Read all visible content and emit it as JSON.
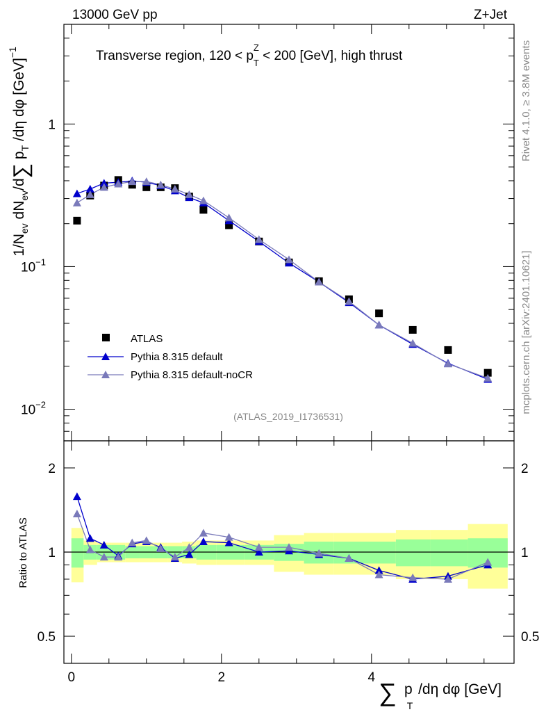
{
  "header": {
    "energy_label": "13000 GeV pp",
    "process_label": "Z+Jet",
    "title_prefix": "Transverse region, 120 < p",
    "title_sup": "Z",
    "title_sub": "T",
    "title_suffix": " < 200 [GeV], high thrust",
    "watermark": "(ATLAS_2019_I1736531)",
    "rivet_label": "Rivet 4.1.0, ≥ 3.8M events",
    "mcplots_label": "mcplots.cern.ch [arXiv:2401.10621]"
  },
  "axes": {
    "ylabel_main": "1/N_ev dN_ev/d∑ p_T /dη dφ [GeV]^-1",
    "ylabel_ratio": "Ratio to ATLAS",
    "xlabel": "∑ p_T /dη dφ [GeV]"
  },
  "chart_data": {
    "type": "scatter",
    "x_range": [
      -0.1,
      5.9
    ],
    "main_y_range": [
      0.006,
      5.0
    ],
    "main_y_scale": "log",
    "main_y_ticks": [
      {
        "value": 1,
        "label": "1"
      },
      {
        "value": 0.1,
        "label": "10",
        "exp": "−1"
      },
      {
        "value": 0.01,
        "label": "10",
        "exp": "−2"
      }
    ],
    "ratio_y_range": [
      0.4,
      2.5
    ],
    "ratio_y_scale": "log",
    "ratio_y_ticks": [
      {
        "value": 2,
        "label": "2"
      },
      {
        "value": 1,
        "label": "1"
      },
      {
        "value": 0.5,
        "label": "0.5"
      }
    ],
    "x_ticks": [
      {
        "value": 0,
        "label": "0"
      },
      {
        "value": 2,
        "label": "2"
      },
      {
        "value": 4,
        "label": "4"
      }
    ],
    "x": [
      0.075,
      0.25,
      0.435,
      0.625,
      0.81,
      1.0,
      1.19,
      1.38,
      1.57,
      1.76,
      2.1,
      2.5,
      2.9,
      3.3,
      3.7,
      4.1,
      4.55,
      5.02,
      5.55
    ],
    "data": {
      "name": "ATLAS",
      "values": [
        0.21,
        0.315,
        0.37,
        0.405,
        0.375,
        0.36,
        0.36,
        0.355,
        0.31,
        0.25,
        0.195,
        0.15,
        0.107,
        0.079,
        0.059,
        0.047,
        0.036,
        0.026,
        0.018
      ],
      "band_inner": [
        0.12,
        0.06,
        0.06,
        0.06,
        0.05,
        0.05,
        0.05,
        0.05,
        0.05,
        0.06,
        0.06,
        0.06,
        0.07,
        0.09,
        0.09,
        0.09,
        0.11,
        0.11,
        0.12
      ],
      "band_outer": [
        0.22,
        0.1,
        0.08,
        0.08,
        0.08,
        0.08,
        0.08,
        0.08,
        0.09,
        0.1,
        0.1,
        0.1,
        0.15,
        0.17,
        0.17,
        0.17,
        0.2,
        0.2,
        0.26
      ]
    },
    "series": [
      {
        "name": "Pythia 8.315 default",
        "color": "#0000cc",
        "values": [
          0.325,
          0.35,
          0.385,
          0.39,
          0.4,
          0.39,
          0.37,
          0.34,
          0.305,
          0.28,
          0.21,
          0.15,
          0.106,
          0.078,
          0.056,
          0.039,
          0.0285,
          0.021,
          0.0162
        ],
        "ratio": [
          1.58,
          1.12,
          1.06,
          0.97,
          1.07,
          1.09,
          1.04,
          0.95,
          0.98,
          1.09,
          1.08,
          1.0,
          1.01,
          0.98,
          0.95,
          0.86,
          0.8,
          0.82,
          0.9
        ]
      },
      {
        "name": "Pythia 8.315 default-noCR",
        "color": "#7a7aba",
        "values": [
          0.28,
          0.32,
          0.36,
          0.38,
          0.395,
          0.395,
          0.375,
          0.35,
          0.32,
          0.29,
          0.22,
          0.155,
          0.112,
          0.078,
          0.057,
          0.039,
          0.029,
          0.0208,
          0.0165
        ],
        "ratio": [
          1.37,
          1.02,
          0.96,
          0.96,
          1.08,
          1.1,
          1.03,
          0.96,
          1.04,
          1.17,
          1.13,
          1.04,
          1.04,
          0.99,
          0.95,
          0.83,
          0.81,
          0.8,
          0.92
        ]
      }
    ],
    "legend": [
      {
        "label": "ATLAS",
        "marker": "square"
      },
      {
        "label": "Pythia 8.315 default",
        "marker": "triangle"
      },
      {
        "label": "Pythia 8.315 default-noCR",
        "marker": "triangle"
      }
    ],
    "colors": {
      "band_inner": "#99ff99",
      "band_outer": "#ffff99",
      "data_marker": "#000000"
    }
  }
}
